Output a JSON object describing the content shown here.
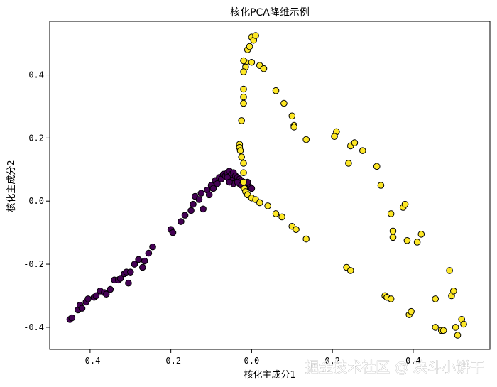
{
  "chart_data": {
    "type": "scatter",
    "title": "核化PCA降维示例",
    "xlabel": "核化主成分1",
    "ylabel": "核化主成分2",
    "xlim": [
      -0.5,
      0.59
    ],
    "ylim": [
      -0.47,
      0.57
    ],
    "xticks": [
      -0.4,
      -0.2,
      0.0,
      0.2,
      0.4
    ],
    "yticks": [
      -0.4,
      -0.2,
      0.0,
      0.2,
      0.4
    ],
    "xtick_labels": [
      "-0.4",
      "-0.2",
      "0.0",
      "0.2",
      "0.4"
    ],
    "ytick_labels": [
      "-0.4",
      "-0.2",
      "0.0",
      "0.2",
      "0.4"
    ],
    "grid": false,
    "colors": {
      "class_0": "#440154",
      "class_1": "#fde725",
      "edge": "#000000"
    },
    "series": [
      {
        "values": [
          [
            -0.45,
            -0.375
          ],
          [
            -0.445,
            -0.37
          ],
          [
            -0.43,
            -0.345
          ],
          [
            -0.425,
            -0.33
          ],
          [
            -0.42,
            -0.34
          ],
          [
            -0.41,
            -0.32
          ],
          [
            -0.405,
            -0.31
          ],
          [
            -0.39,
            -0.305
          ],
          [
            -0.385,
            -0.3
          ],
          [
            -0.375,
            -0.285
          ],
          [
            -0.365,
            -0.29
          ],
          [
            -0.36,
            -0.295
          ],
          [
            -0.35,
            -0.28
          ],
          [
            -0.34,
            -0.25
          ],
          [
            -0.33,
            -0.25
          ],
          [
            -0.325,
            -0.245
          ],
          [
            -0.315,
            -0.23
          ],
          [
            -0.31,
            -0.225
          ],
          [
            -0.305,
            -0.26
          ],
          [
            -0.3,
            -0.225
          ],
          [
            -0.29,
            -0.2
          ],
          [
            -0.28,
            -0.185
          ],
          [
            -0.27,
            -0.21
          ],
          [
            -0.265,
            -0.19
          ],
          [
            -0.255,
            -0.165
          ],
          [
            -0.245,
            -0.145
          ],
          [
            -0.2,
            -0.09
          ],
          [
            -0.195,
            -0.1
          ],
          [
            -0.175,
            -0.065
          ],
          [
            -0.165,
            -0.045
          ],
          [
            -0.15,
            -0.03
          ],
          [
            -0.145,
            -0.01
          ],
          [
            -0.14,
            0.015
          ],
          [
            -0.13,
            0.005
          ],
          [
            -0.125,
            0.025
          ],
          [
            -0.12,
            -0.025
          ],
          [
            -0.11,
            0.035
          ],
          [
            -0.105,
            0.02
          ],
          [
            -0.1,
            0.05
          ],
          [
            -0.095,
            0.04
          ],
          [
            -0.09,
            0.065
          ],
          [
            -0.085,
            0.055
          ],
          [
            -0.08,
            0.075
          ],
          [
            -0.075,
            0.07
          ],
          [
            -0.07,
            0.085
          ],
          [
            -0.065,
            0.08
          ],
          [
            -0.06,
            0.09
          ],
          [
            -0.055,
            0.095
          ],
          [
            -0.05,
            0.085
          ],
          [
            -0.045,
            0.09
          ],
          [
            -0.04,
            0.08
          ],
          [
            -0.035,
            0.075
          ],
          [
            -0.03,
            0.07
          ],
          [
            -0.025,
            0.065
          ],
          [
            -0.02,
            0.06
          ],
          [
            -0.015,
            0.055
          ],
          [
            -0.01,
            0.05
          ],
          [
            -0.005,
            0.045
          ],
          [
            0.0,
            0.04
          ],
          [
            -0.05,
            0.065
          ],
          [
            -0.04,
            0.06
          ],
          [
            -0.03,
            0.055
          ],
          [
            -0.06,
            0.075
          ],
          [
            -0.02,
            0.045
          ],
          [
            -0.01,
            0.06
          ],
          [
            -0.045,
            0.055
          ],
          [
            -0.035,
            0.06
          ],
          [
            -0.025,
            0.05
          ],
          [
            -0.055,
            0.06
          ],
          [
            -0.015,
            0.04
          ]
        ]
      },
      {
        "values": [
          [
            0.0,
            0.52
          ],
          [
            0.005,
            0.51
          ],
          [
            0.01,
            0.525
          ],
          [
            -0.01,
            0.48
          ],
          [
            -0.005,
            0.49
          ],
          [
            0.0,
            0.44
          ],
          [
            -0.015,
            0.44
          ],
          [
            -0.02,
            0.445
          ],
          [
            -0.015,
            0.425
          ],
          [
            -0.02,
            0.41
          ],
          [
            0.02,
            0.43
          ],
          [
            0.03,
            0.42
          ],
          [
            -0.02,
            0.355
          ],
          [
            -0.02,
            0.33
          ],
          [
            -0.02,
            0.31
          ],
          [
            -0.025,
            0.255
          ],
          [
            -0.03,
            0.18
          ],
          [
            -0.03,
            0.17
          ],
          [
            -0.028,
            0.16
          ],
          [
            -0.025,
            0.14
          ],
          [
            -0.02,
            0.12
          ],
          [
            -0.02,
            0.09
          ],
          [
            -0.02,
            0.06
          ],
          [
            -0.018,
            0.04
          ],
          [
            -0.015,
            0.03
          ],
          [
            -0.01,
            0.02
          ],
          [
            0.0,
            0.01
          ],
          [
            0.01,
            0.005
          ],
          [
            0.02,
            -0.005
          ],
          [
            0.04,
            -0.015
          ],
          [
            0.06,
            -0.04
          ],
          [
            0.075,
            -0.05
          ],
          [
            0.1,
            -0.08
          ],
          [
            0.11,
            -0.09
          ],
          [
            0.135,
            -0.12
          ],
          [
            0.06,
            0.35
          ],
          [
            0.08,
            0.31
          ],
          [
            0.1,
            0.27
          ],
          [
            0.105,
            0.24
          ],
          [
            0.105,
            0.235
          ],
          [
            0.135,
            0.195
          ],
          [
            0.21,
            0.22
          ],
          [
            0.205,
            0.205
          ],
          [
            0.24,
            0.12
          ],
          [
            0.245,
            0.175
          ],
          [
            0.255,
            0.185
          ],
          [
            0.275,
            0.16
          ],
          [
            0.31,
            0.11
          ],
          [
            0.32,
            0.05
          ],
          [
            0.345,
            -0.04
          ],
          [
            0.35,
            -0.095
          ],
          [
            0.35,
            -0.115
          ],
          [
            0.375,
            -0.02
          ],
          [
            0.38,
            -0.01
          ],
          [
            0.385,
            -0.125
          ],
          [
            0.41,
            -0.13
          ],
          [
            0.42,
            -0.105
          ],
          [
            0.235,
            -0.21
          ],
          [
            0.245,
            -0.22
          ],
          [
            0.33,
            -0.3
          ],
          [
            0.335,
            -0.305
          ],
          [
            0.345,
            -0.31
          ],
          [
            0.39,
            -0.36
          ],
          [
            0.395,
            -0.35
          ],
          [
            0.455,
            -0.31
          ],
          [
            0.455,
            -0.4
          ],
          [
            0.47,
            -0.41
          ],
          [
            0.475,
            -0.41
          ],
          [
            0.49,
            -0.22
          ],
          [
            0.495,
            -0.3
          ],
          [
            0.5,
            -0.285
          ],
          [
            0.505,
            -0.4
          ],
          [
            0.51,
            -0.425
          ],
          [
            0.52,
            -0.375
          ],
          [
            0.525,
            -0.39
          ]
        ]
      }
    ]
  },
  "watermark": "掘金技术社区 @ 决斗小饼干"
}
